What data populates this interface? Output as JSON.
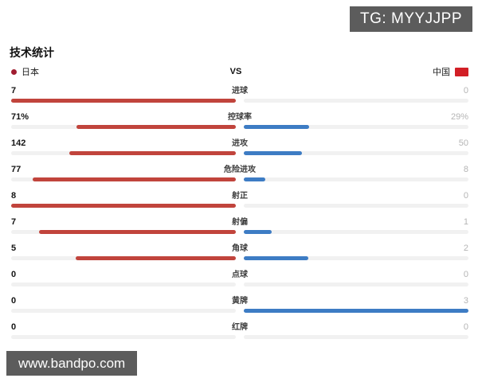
{
  "watermarks": {
    "top": "TG: MYYJJPP",
    "bottom": "www.bandpo.com"
  },
  "header": {
    "title": "技术统计"
  },
  "teams": {
    "home": "日本",
    "vs": "VS",
    "away": "中国"
  },
  "colors": {
    "home_bar": "#c1443c",
    "away_bar": "#3d7cc4",
    "track": "#f1f1f1",
    "home_dot": "#a01c30",
    "away_flag": "#d21f26",
    "badge_bg": "#5c5c5c"
  },
  "stats": [
    {
      "label": "进球",
      "home_display": "7",
      "away_display": "0",
      "home_value": 7,
      "away_value": 0
    },
    {
      "label": "控球率",
      "home_display": "71%",
      "away_display": "29%",
      "home_value": 71,
      "away_value": 29
    },
    {
      "label": "进攻",
      "home_display": "142",
      "away_display": "50",
      "home_value": 142,
      "away_value": 50
    },
    {
      "label": "危险进攻",
      "home_display": "77",
      "away_display": "8",
      "home_value": 77,
      "away_value": 8
    },
    {
      "label": "射正",
      "home_display": "8",
      "away_display": "0",
      "home_value": 8,
      "away_value": 0
    },
    {
      "label": "射偏",
      "home_display": "7",
      "away_display": "1",
      "home_value": 7,
      "away_value": 1
    },
    {
      "label": "角球",
      "home_display": "5",
      "away_display": "2",
      "home_value": 5,
      "away_value": 2
    },
    {
      "label": "点球",
      "home_display": "0",
      "away_display": "0",
      "home_value": 0,
      "away_value": 0
    },
    {
      "label": "黄牌",
      "home_display": "0",
      "away_display": "3",
      "home_value": 0,
      "away_value": 3
    },
    {
      "label": "红牌",
      "home_display": "0",
      "away_display": "0",
      "home_value": 0,
      "away_value": 0
    }
  ],
  "chart_data": {
    "type": "bar",
    "orientation": "horizontal-bidirectional",
    "title": "技术统计",
    "categories": [
      "进球",
      "控球率",
      "进攻",
      "危险进攻",
      "射正",
      "射偏",
      "角球",
      "点球",
      "黄牌",
      "红牌"
    ],
    "series": [
      {
        "name": "日本",
        "color": "#c1443c",
        "values": [
          7,
          71,
          142,
          77,
          8,
          7,
          5,
          0,
          0,
          0
        ]
      },
      {
        "name": "中国",
        "color": "#3d7cc4",
        "values": [
          0,
          29,
          50,
          8,
          0,
          1,
          2,
          0,
          3,
          0
        ]
      }
    ],
    "value_units": {
      "控球率": "%"
    },
    "legend_position": "top",
    "grid": false,
    "note": "bar length = value / (home + away) share of each half"
  }
}
